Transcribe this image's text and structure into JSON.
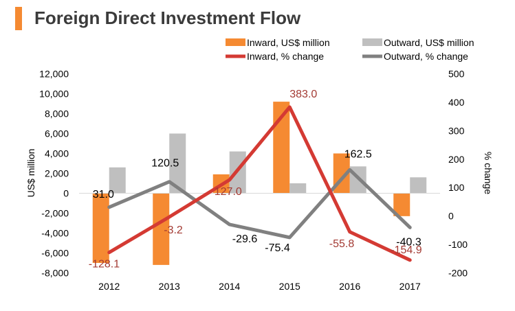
{
  "title": "Foreign Direct Investment Flow",
  "colors": {
    "accent": "#f58a32",
    "inward_bar": "#f58a32",
    "outward_bar": "#bfbfbf",
    "inward_line": "#d43a33",
    "outward_line": "#808080",
    "inward_label": "#a33a33",
    "text": "#000000"
  },
  "chart_data": {
    "type": "bar",
    "title": "Foreign Direct Investment Flow",
    "categories": [
      "2012",
      "2013",
      "2014",
      "2015",
      "2016",
      "2017"
    ],
    "xlabel": "",
    "ylabel": "US$ million",
    "y2label": "% change",
    "ylim": [
      -8000,
      12000
    ],
    "y2lim": [
      -200,
      500
    ],
    "yticks": [
      "12,000",
      "10,000",
      "8,000",
      "6,000",
      "4,000",
      "2,000",
      "0",
      "-2,000",
      "-4,000",
      "-6,000",
      "-8,000"
    ],
    "y2ticks": [
      "500",
      "400",
      "300",
      "200",
      "100",
      "0",
      "-100",
      "-200"
    ],
    "legend": {
      "position": "top-right",
      "entries": [
        "Inward, US$ million",
        "Outward, US$ million",
        "Inward, % change",
        "Outward, % change"
      ]
    },
    "series": [
      {
        "name": "Inward, US$ million",
        "kind": "bar",
        "axis": "left",
        "values": [
          -7000,
          -7200,
          1900,
          9200,
          4000,
          -2300
        ]
      },
      {
        "name": "Outward, US$ million",
        "kind": "bar",
        "axis": "left",
        "values": [
          2600,
          6000,
          4200,
          1000,
          2700,
          1600
        ]
      },
      {
        "name": "Inward, % change",
        "kind": "line",
        "axis": "right",
        "values": [
          -128.1,
          -3.2,
          127.0,
          383.0,
          -55.8,
          -154.9
        ],
        "labels": [
          "-128.1",
          "-3.2",
          "127.0",
          "383.0",
          "-55.8",
          "-154.9"
        ]
      },
      {
        "name": "Outward, % change",
        "kind": "line",
        "axis": "right",
        "values": [
          31.0,
          120.5,
          -29.6,
          -75.4,
          162.5,
          -40.3
        ],
        "labels": [
          "31.0",
          "120.5",
          "-29.6",
          "-75.4",
          "162.5",
          "-40.3"
        ]
      }
    ]
  }
}
